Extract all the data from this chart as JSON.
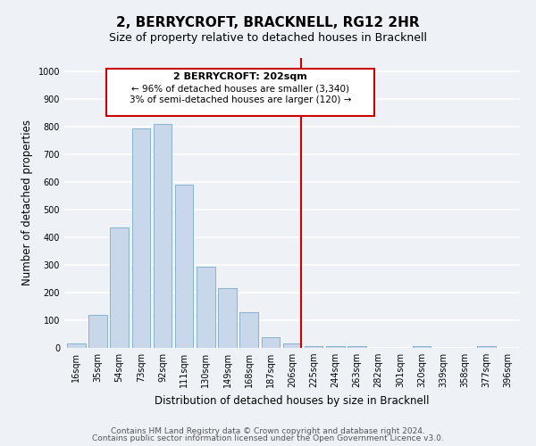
{
  "title": "2, BERRYCROFT, BRACKNELL, RG12 2HR",
  "subtitle": "Size of property relative to detached houses in Bracknell",
  "xlabel": "Distribution of detached houses by size in Bracknell",
  "ylabel": "Number of detached properties",
  "bar_labels": [
    "16sqm",
    "35sqm",
    "54sqm",
    "73sqm",
    "92sqm",
    "111sqm",
    "130sqm",
    "149sqm",
    "168sqm",
    "187sqm",
    "206sqm",
    "225sqm",
    "244sqm",
    "263sqm",
    "282sqm",
    "301sqm",
    "320sqm",
    "339sqm",
    "358sqm",
    "377sqm",
    "396sqm"
  ],
  "bar_values": [
    15,
    120,
    435,
    795,
    810,
    590,
    295,
    215,
    130,
    40,
    15,
    5,
    5,
    5,
    0,
    0,
    5,
    0,
    0,
    5,
    0
  ],
  "bar_color": "#c8d8ea",
  "bar_edge_color": "#7aaac8",
  "property_line_label": "2 BERRYCROFT: 202sqm",
  "annotation_line1": "← 96% of detached houses are smaller (3,340)",
  "annotation_line2": "3% of semi-detached houses are larger (120) →",
  "annotation_box_edge": "#cc0000",
  "annotation_box_fill": "#ffffff",
  "vline_color": "#cc0000",
  "vline_x": 10.42,
  "ylim": [
    0,
    1050
  ],
  "yticks": [
    0,
    100,
    200,
    300,
    400,
    500,
    600,
    700,
    800,
    900,
    1000
  ],
  "footer_line1": "Contains HM Land Registry data © Crown copyright and database right 2024.",
  "footer_line2": "Contains public sector information licensed under the Open Government Licence v3.0.",
  "bg_color": "#eef2f7",
  "grid_color": "#ffffff",
  "title_fontsize": 11,
  "subtitle_fontsize": 9,
  "axis_label_fontsize": 8.5,
  "tick_fontsize": 7,
  "footer_fontsize": 6.5,
  "annot_title_fontsize": 8,
  "annot_text_fontsize": 7.5
}
